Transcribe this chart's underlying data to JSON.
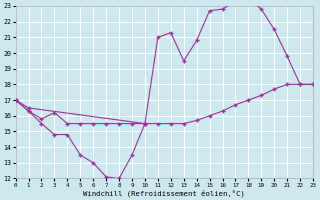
{
  "xlabel": "Windchill (Refroidissement éolien,°C)",
  "bg_color": "#cde8ee",
  "line_color": "#993399",
  "grid_color": "#ffffff",
  "xlim": [
    0,
    23
  ],
  "ylim": [
    12,
    23
  ],
  "xticks": [
    0,
    1,
    2,
    3,
    4,
    5,
    6,
    7,
    8,
    9,
    10,
    11,
    12,
    13,
    14,
    15,
    16,
    17,
    18,
    19,
    20,
    21,
    22,
    23
  ],
  "yticks": [
    12,
    13,
    14,
    15,
    16,
    17,
    18,
    19,
    20,
    21,
    22,
    23
  ],
  "line1_x": [
    0,
    1,
    2,
    3,
    4,
    5,
    6,
    7,
    8,
    9,
    10
  ],
  "line1_y": [
    17.0,
    16.3,
    15.5,
    14.8,
    14.8,
    13.5,
    13.0,
    12.1,
    12.0,
    13.5,
    15.5
  ],
  "line2_x": [
    0,
    1,
    2,
    3,
    4,
    5,
    6,
    7,
    8,
    9,
    10,
    11,
    12,
    13,
    14,
    15,
    16,
    17,
    18,
    19,
    20,
    21,
    22,
    23
  ],
  "line2_y": [
    17.0,
    16.3,
    15.8,
    16.2,
    15.5,
    15.5,
    15.5,
    15.5,
    15.5,
    15.5,
    15.5,
    15.5,
    15.5,
    15.5,
    15.7,
    16.0,
    16.3,
    16.7,
    17.0,
    17.3,
    17.7,
    18.0,
    18.0,
    18.0
  ],
  "line3_x": [
    0,
    1,
    10,
    11,
    12,
    13,
    14,
    15,
    16,
    17,
    18,
    19,
    20,
    21,
    22,
    23
  ],
  "line3_y": [
    17.0,
    16.5,
    15.5,
    21.0,
    21.3,
    19.5,
    20.8,
    22.7,
    22.8,
    23.3,
    23.5,
    22.8,
    21.5,
    19.8,
    18.0,
    18.0
  ]
}
